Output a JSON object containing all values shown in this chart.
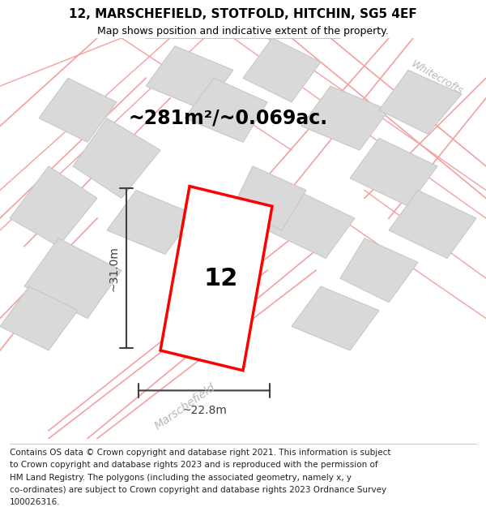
{
  "title_line1": "12, MARSCHEFIELD, STOTFOLD, HITCHIN, SG5 4EF",
  "title_line2": "Map shows position and indicative extent of the property.",
  "area_text": "~281m²/~0.069ac.",
  "width_label": "~22.8m",
  "height_label": "~31.0m",
  "plot_number": "12",
  "map_bg": "#f8f8f8",
  "road_color": "#f4a0a0",
  "building_fill": "#d9d9d9",
  "building_edge": "#c8c8c8",
  "highlight_fill": "#ffffff",
  "highlight_edge": "#ff0000",
  "dim_color": "#404040",
  "street_label_color": "#b8b8b8",
  "title_fontsize": 11,
  "subtitle_fontsize": 9,
  "area_fontsize": 17,
  "dim_fontsize": 10,
  "plot_num_fontsize": 22,
  "footer_fontsize": 7.5,
  "whitecrofts_label": "Whitecrofts",
  "marschefield_label": "Marschefield",
  "footer_lines": [
    "Contains OS data © Crown copyright and database right 2021. This information is subject",
    "to Crown copyright and database rights 2023 and is reproduced with the permission of",
    "HM Land Registry. The polygons (including the associated geometry, namely x, y",
    "co-ordinates) are subject to Crown copyright and database rights 2023 Ordnance Survey",
    "100026316."
  ]
}
